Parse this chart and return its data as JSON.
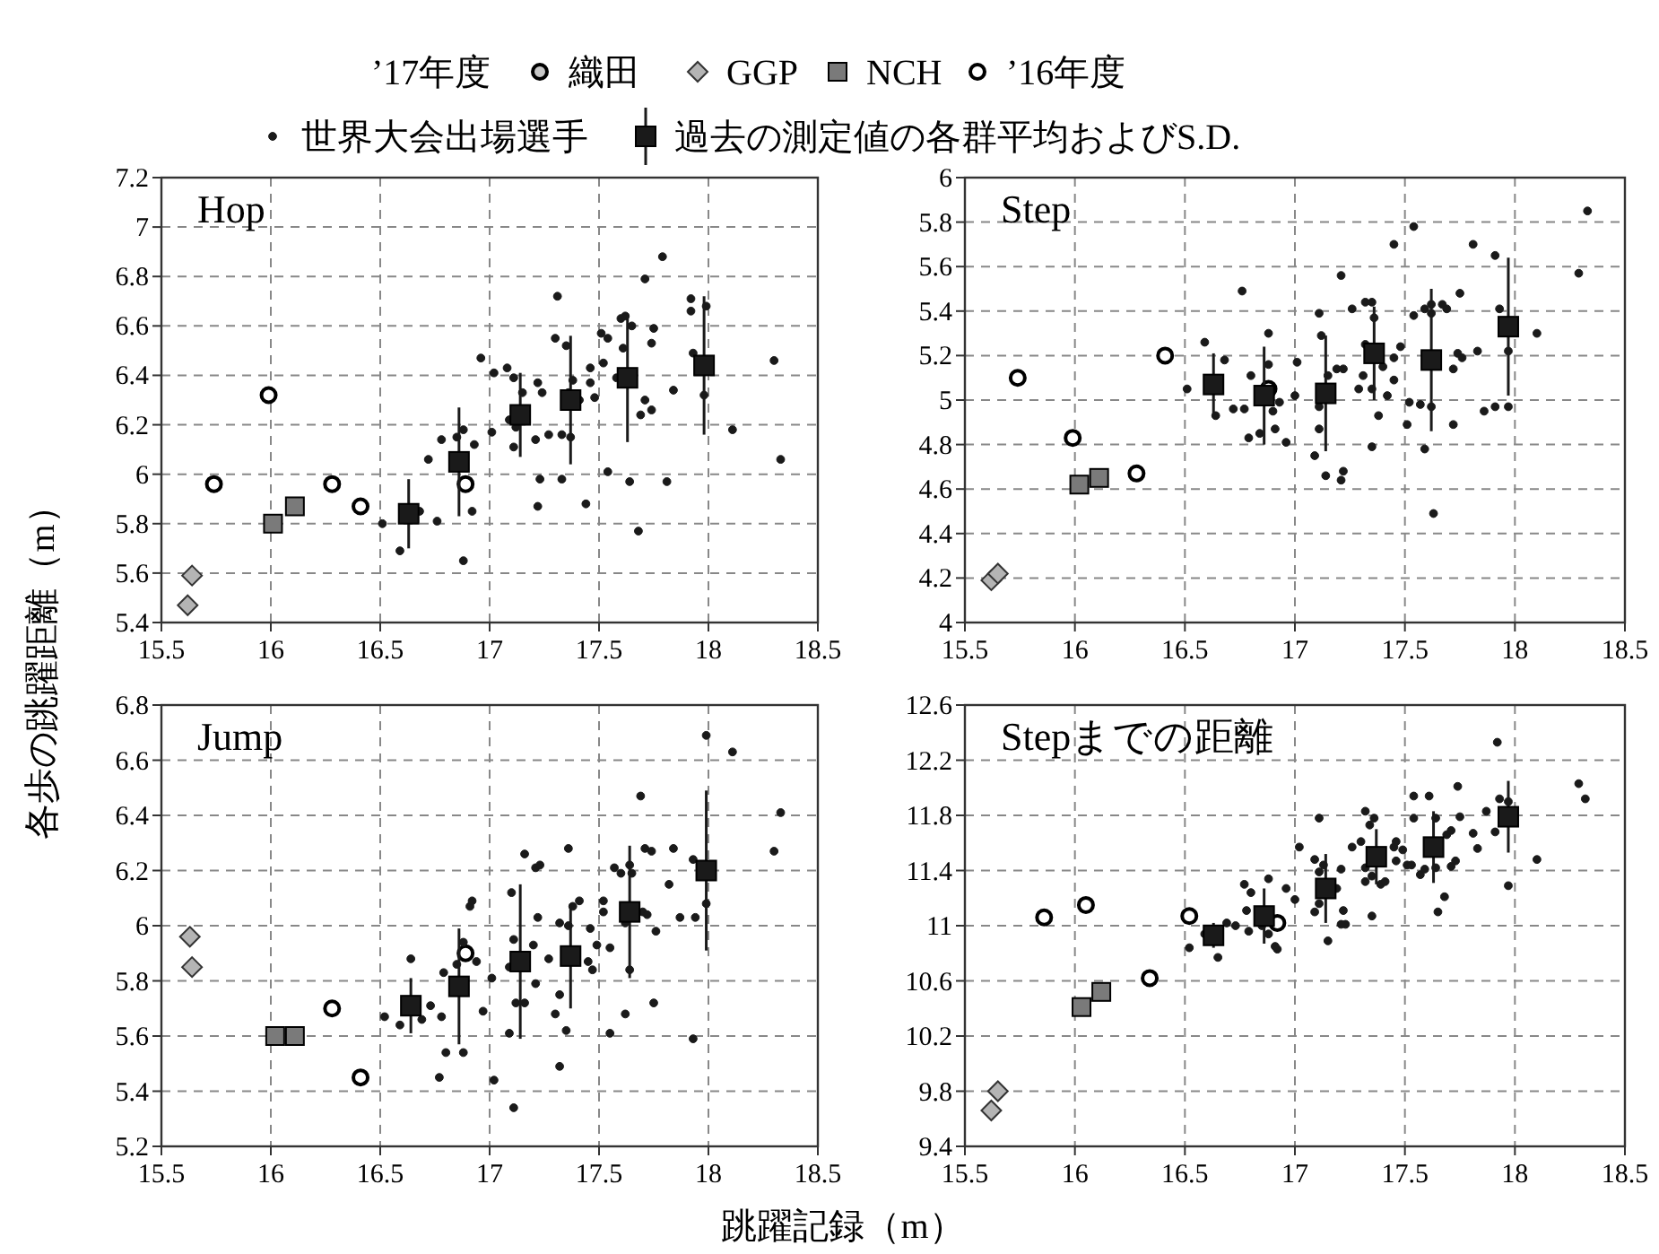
{
  "chart_data": [
    {
      "type": "scatter",
      "title": "Hop",
      "ylabel": "各歩の跳躍距離（m）",
      "legend": "top",
      "legend_title": "’17年度",
      "grid": true,
      "xlim": [
        15.5,
        18.5
      ],
      "xticks": [
        15.5,
        16,
        16.5,
        17,
        17.5,
        18,
        18.5
      ],
      "ylim": [
        5.4,
        7.2
      ],
      "yticks": [
        5.4,
        5.6,
        5.8,
        6,
        6.2,
        6.4,
        6.6,
        6.8,
        7,
        7.2
      ],
      "series": [
        {
          "name": "織田",
          "color": "#c8c8c8",
          "marker": "circle"
        },
        {
          "name": "GGP",
          "color": "#b4b4b4",
          "marker": "diamond",
          "x": [
            15.64,
            15.62
          ],
          "values": [
            5.59,
            5.47
          ]
        },
        {
          "name": "NCH",
          "color": "#7a7a7a",
          "marker": "square",
          "x": [
            16.01,
            16.11
          ],
          "values": [
            5.8,
            5.87
          ]
        },
        {
          "name": "’16年度",
          "color": "#ffffff",
          "marker": "circle",
          "x": [
            15.99,
            15.74,
            16.28,
            16.41,
            16.89
          ],
          "values": [
            6.32,
            5.96,
            5.96,
            5.87,
            5.96
          ]
        },
        {
          "name": "世界大会出場選手",
          "color": "#1a1a1a",
          "marker": "circle",
          "x": [
            16.51,
            16.59,
            16.68,
            16.72,
            16.76,
            16.78,
            16.85,
            16.88,
            16.88,
            16.92,
            16.93,
            16.96,
            17.01,
            17.02,
            17.08,
            17.09,
            17.11,
            17.11,
            17.12,
            17.15,
            17.21,
            17.22,
            17.22,
            17.23,
            17.24,
            17.27,
            17.3,
            17.31,
            17.33,
            17.33,
            17.35,
            17.36,
            17.37,
            17.38,
            17.41,
            17.44,
            17.46,
            17.46,
            17.48,
            17.51,
            17.52,
            17.54,
            17.54,
            17.58,
            17.6,
            17.61,
            17.62,
            17.64,
            17.65,
            17.68,
            17.69,
            17.71,
            17.71,
            17.74,
            17.74,
            17.75,
            17.79,
            17.81,
            17.84,
            17.92,
            17.92,
            17.93,
            17.98,
            17.99,
            18.11,
            18.3,
            18.33
          ],
          "values": [
            5.8,
            5.69,
            5.85,
            6.06,
            5.81,
            6.14,
            6.15,
            6.18,
            5.65,
            5.85,
            6.12,
            6.47,
            6.17,
            6.41,
            6.43,
            6.22,
            6.39,
            6.11,
            6.19,
            6.33,
            6.14,
            6.37,
            5.87,
            5.98,
            6.33,
            6.16,
            6.55,
            6.72,
            5.98,
            6.16,
            6.52,
            6.33,
            6.15,
            6.38,
            6.3,
            5.88,
            6.43,
            6.37,
            6.31,
            6.57,
            6.45,
            6.55,
            6.01,
            6.39,
            6.63,
            6.51,
            6.64,
            5.97,
            6.6,
            5.77,
            6.24,
            6.79,
            6.3,
            6.26,
            6.53,
            6.59,
            6.88,
            5.97,
            6.34,
            6.71,
            6.66,
            6.49,
            6.32,
            6.68,
            6.18,
            6.46,
            6.06
          ]
        },
        {
          "name": "過去の測定値の各群平均およびS.D.",
          "color": "#1a1a1a",
          "marker": "square",
          "x": [
            16.63,
            16.86,
            17.14,
            17.37,
            17.63,
            17.98
          ],
          "values": [
            5.84,
            6.05,
            6.24,
            6.3,
            6.39,
            6.44
          ],
          "errors": [
            0.14,
            0.22,
            0.17,
            0.26,
            0.26,
            0.28
          ]
        }
      ]
    },
    {
      "type": "scatter",
      "title": "Step",
      "grid": true,
      "xlim": [
        15.5,
        18.5
      ],
      "xticks": [
        15.5,
        16,
        16.5,
        17,
        17.5,
        18,
        18.5
      ],
      "ylim": [
        4,
        6
      ],
      "yticks": [
        4,
        4.2,
        4.4,
        4.6,
        4.8,
        5,
        5.2,
        5.4,
        5.6,
        5.8,
        6
      ],
      "series": [
        {
          "color": "#b4b4b4",
          "marker": "diamond",
          "x": [
            15.62,
            15.65
          ],
          "values": [
            4.19,
            4.22
          ]
        },
        {
          "color": "#7a7a7a",
          "marker": "square",
          "x": [
            16.02,
            16.11
          ],
          "values": [
            4.62,
            4.65
          ]
        },
        {
          "color": "#ffffff",
          "marker": "circle",
          "x": [
            15.74,
            15.99,
            16.28,
            16.41,
            16.88
          ],
          "values": [
            5.1,
            4.83,
            4.67,
            5.2,
            5.05
          ]
        },
        {
          "color": "#1a1a1a",
          "marker": "circle",
          "x": [
            16.51,
            16.59,
            16.64,
            16.68,
            16.72,
            16.76,
            16.77,
            16.79,
            16.8,
            16.84,
            16.88,
            16.88,
            16.9,
            16.91,
            16.93,
            16.96,
            17,
            17.01,
            17.09,
            17.11,
            17.11,
            17.11,
            17.12,
            17.14,
            17.15,
            17.19,
            17.21,
            17.21,
            17.22,
            17.22,
            17.26,
            17.29,
            17.31,
            17.32,
            17.32,
            17.35,
            17.35,
            17.35,
            17.36,
            17.38,
            17.4,
            17.42,
            17.45,
            17.45,
            17.45,
            17.48,
            17.51,
            17.52,
            17.54,
            17.54,
            17.57,
            17.59,
            17.59,
            17.62,
            17.62,
            17.62,
            17.63,
            17.67,
            17.69,
            17.72,
            17.72,
            17.74,
            17.75,
            17.76,
            17.81,
            17.83,
            17.86,
            17.91,
            17.91,
            17.93,
            17.97,
            17.97,
            18.1,
            18.29,
            18.33
          ],
          "values": [
            5.05,
            5.26,
            4.93,
            5.18,
            4.96,
            5.49,
            4.96,
            4.83,
            5.11,
            4.85,
            5.3,
            5.16,
            4.95,
            4.87,
            4.99,
            4.81,
            5.02,
            5.17,
            4.75,
            5.39,
            4.97,
            4.87,
            5.29,
            4.66,
            5.11,
            5.14,
            5.56,
            4.64,
            5.14,
            4.68,
            5.41,
            5.05,
            5.11,
            5.44,
            5.25,
            5.44,
            5.05,
            4.79,
            5.37,
            4.93,
            5.15,
            5.02,
            5.7,
            5.09,
            5.19,
            5.24,
            4.89,
            4.99,
            5.38,
            5.78,
            4.98,
            4.78,
            5.41,
            4.97,
            5.43,
            5.39,
            4.49,
            5.43,
            5.41,
            5.14,
            4.89,
            5.21,
            5.48,
            5.19,
            5.7,
            5.22,
            4.95,
            5.65,
            4.97,
            5.41,
            5.22,
            4.97,
            5.3,
            5.57,
            5.85
          ]
        },
        {
          "color": "#1a1a1a",
          "marker": "square",
          "x": [
            16.63,
            16.86,
            17.14,
            17.36,
            17.62,
            17.97
          ],
          "values": [
            5.07,
            5.02,
            5.03,
            5.21,
            5.18,
            5.33
          ],
          "errors": [
            0.14,
            0.22,
            0.26,
            0.21,
            0.32,
            0.31
          ]
        }
      ]
    },
    {
      "type": "scatter",
      "title": "Jump",
      "xlabel": "跳躍記録（m）",
      "grid": true,
      "xlim": [
        15.5,
        18.5
      ],
      "xticks": [
        15.5,
        16,
        16.5,
        17,
        17.5,
        18,
        18.5
      ],
      "ylim": [
        5.2,
        6.8
      ],
      "yticks": [
        5.2,
        5.4,
        5.6,
        5.8,
        6,
        6.2,
        6.4,
        6.6,
        6.8
      ],
      "series": [
        {
          "color": "#b4b4b4",
          "marker": "diamond",
          "x": [
            15.63,
            15.64
          ],
          "values": [
            5.96,
            5.85
          ]
        },
        {
          "color": "#7a7a7a",
          "marker": "square",
          "x": [
            16.02,
            16.11
          ],
          "values": [
            5.6,
            5.6
          ]
        },
        {
          "color": "#ffffff",
          "marker": "circle",
          "x": [
            16.28,
            16.41,
            16.89
          ],
          "values": [
            5.7,
            5.45,
            5.9
          ]
        },
        {
          "color": "#1a1a1a",
          "marker": "circle",
          "x": [
            16.52,
            16.59,
            16.64,
            16.69,
            16.73,
            16.78,
            16.79,
            16.8,
            16.77,
            16.85,
            16.88,
            16.88,
            16.91,
            16.92,
            16.94,
            16.97,
            17.01,
            17.02,
            17.09,
            17.1,
            17.11,
            17.11,
            17.12,
            17.09,
            17.16,
            17.16,
            17.2,
            17.21,
            17.21,
            17.23,
            17.22,
            17.27,
            17.3,
            17.32,
            17.32,
            17.32,
            17.35,
            17.36,
            17.36,
            17.38,
            17.41,
            17.45,
            17.46,
            17.47,
            17.49,
            17.52,
            17.52,
            17.55,
            17.55,
            17.57,
            17.6,
            17.62,
            17.62,
            17.64,
            17.64,
            17.65,
            17.69,
            17.7,
            17.72,
            17.71,
            17.74,
            17.75,
            17.76,
            17.82,
            17.84,
            17.87,
            17.93,
            17.93,
            17.94,
            17.99,
            17.99,
            18.11,
            18.3,
            18.33
          ],
          "values": [
            5.67,
            5.64,
            5.88,
            5.66,
            5.71,
            5.67,
            5.83,
            5.54,
            5.45,
            5.86,
            5.54,
            5.94,
            6.07,
            6.09,
            5.87,
            5.69,
            5.81,
            5.44,
            5.61,
            6.12,
            5.95,
            5.34,
            5.72,
            5.85,
            6.26,
            5.72,
            5.93,
            6.21,
            5.79,
            6.22,
            6.03,
            5.88,
            5.68,
            5.49,
            5.75,
            6.01,
            5.62,
            6.28,
            6,
            6.07,
            6.09,
            5.87,
            5.99,
            5.84,
            5.93,
            6.05,
            6.09,
            5.61,
            5.92,
            6.21,
            6.19,
            5.68,
            6.01,
            5.84,
            6.22,
            6.19,
            6.47,
            6.05,
            6.04,
            6.28,
            6.27,
            5.72,
            5.98,
            6.15,
            6.28,
            6.03,
            5.59,
            6.24,
            6.03,
            6.08,
            6.69,
            6.63,
            6.27,
            6.41
          ]
        },
        {
          "color": "#1a1a1a",
          "marker": "square",
          "x": [
            16.64,
            16.86,
            17.14,
            17.37,
            17.64,
            17.99
          ],
          "values": [
            5.71,
            5.78,
            5.87,
            5.89,
            6.05,
            6.2
          ],
          "errors": [
            0.1,
            0.21,
            0.28,
            0.19,
            0.24,
            0.29
          ]
        }
      ]
    },
    {
      "type": "scatter",
      "title": "Stepまでの距離",
      "grid": true,
      "xlim": [
        15.5,
        18.5
      ],
      "xticks": [
        15.5,
        16,
        16.5,
        17,
        17.5,
        18,
        18.5
      ],
      "ylim": [
        9.4,
        12.6
      ],
      "yticks": [
        9.4,
        9.8,
        10.2,
        10.6,
        11,
        11.4,
        11.8,
        12.2,
        12.6
      ],
      "series": [
        {
          "color": "#b4b4b4",
          "marker": "diamond",
          "x": [
            15.62,
            15.65
          ],
          "values": [
            9.66,
            9.8
          ]
        },
        {
          "color": "#7a7a7a",
          "marker": "square",
          "x": [
            16.03,
            16.12
          ],
          "values": [
            10.41,
            10.52
          ]
        },
        {
          "color": "#ffffff",
          "marker": "circle",
          "x": [
            15.86,
            16.05,
            16.34,
            16.52,
            16.92
          ],
          "values": [
            11.06,
            11.15,
            10.62,
            11.07,
            11.02
          ]
        },
        {
          "color": "#1a1a1a",
          "marker": "circle",
          "x": [
            16.52,
            16.59,
            16.65,
            16.69,
            16.73,
            16.77,
            16.8,
            16.78,
            16.79,
            16.85,
            16.88,
            16.88,
            16.91,
            16.92,
            16.96,
            17,
            17.02,
            17.09,
            17.09,
            17.11,
            17.11,
            17.11,
            17.13,
            17.15,
            17.19,
            17.21,
            17.21,
            17.22,
            17.23,
            17.26,
            17.3,
            17.32,
            17.32,
            17.32,
            17.34,
            17.36,
            17.35,
            17.35,
            17.39,
            17.41,
            17.45,
            17.46,
            17.46,
            17.49,
            17.51,
            17.53,
            17.54,
            17.54,
            17.57,
            17.59,
            17.61,
            17.64,
            17.65,
            17.64,
            17.68,
            17.69,
            17.71,
            17.71,
            17.73,
            17.74,
            17.75,
            17.81,
            17.83,
            17.87,
            17.91,
            17.92,
            17.93,
            17.97,
            17.97,
            18.1,
            18.29,
            18.32
          ],
          "values": [
            10.84,
            10.94,
            10.77,
            11.02,
            11,
            11.3,
            11.24,
            11.11,
            10.96,
            11,
            11.34,
            10.94,
            10.85,
            10.83,
            11.27,
            11.19,
            11.57,
            11.1,
            11.48,
            11.78,
            11.39,
            11.16,
            11.44,
            10.89,
            11.27,
            11.41,
            11.01,
            11.11,
            11.01,
            11.57,
            11.61,
            11.83,
            11.42,
            11.32,
            11.73,
            11.78,
            11.07,
            11.36,
            11.3,
            11.32,
            11.57,
            11.61,
            11.47,
            11.55,
            11.44,
            11.44,
            11.94,
            11.78,
            11.37,
            11.41,
            11.94,
            11.78,
            11.1,
            11.42,
            11.21,
            11.66,
            11.69,
            11.43,
            11.47,
            12.01,
            11.79,
            11.67,
            11.56,
            11.83,
            11.68,
            12.33,
            11.92,
            11.9,
            11.29,
            11.48,
            12.03,
            11.92
          ]
        },
        {
          "color": "#1a1a1a",
          "marker": "square",
          "x": [
            16.63,
            16.86,
            17.14,
            17.37,
            17.63,
            17.97
          ],
          "values": [
            10.93,
            11.07,
            11.27,
            11.5,
            11.57,
            11.79
          ],
          "errors": [
            0.09,
            0.2,
            0.25,
            0.2,
            0.26,
            0.26
          ]
        }
      ]
    }
  ]
}
